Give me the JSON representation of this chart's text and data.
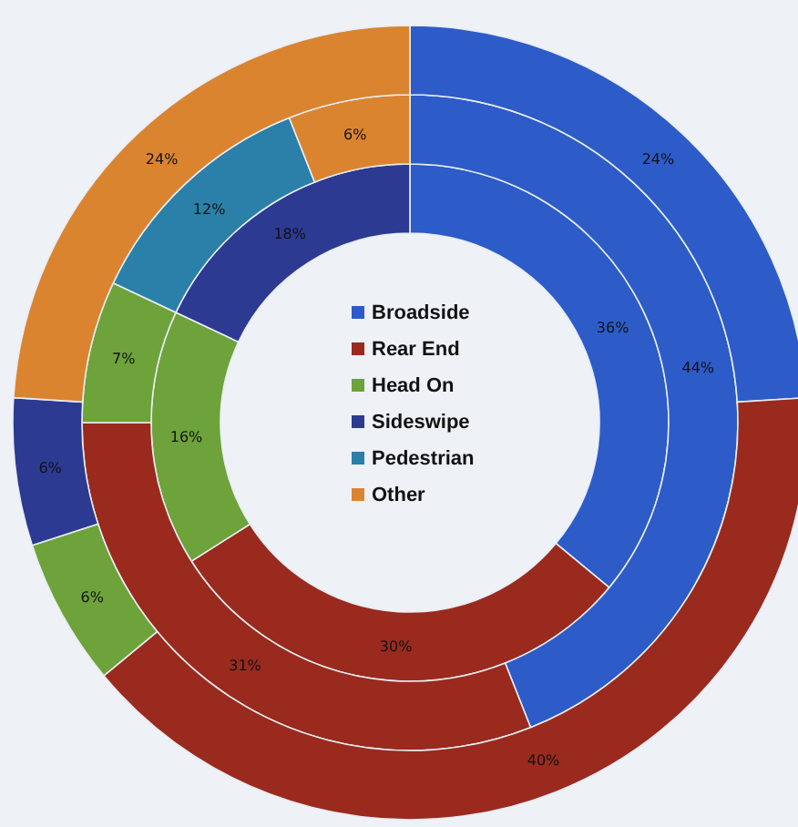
{
  "chart_data": {
    "type": "donut",
    "categories": [
      "Broadside",
      "Rear End",
      "Head On",
      "Sideswipe",
      "Pedestrian",
      "Other"
    ],
    "colors": [
      "#2d5cc8",
      "#9a2a1e",
      "#6da33a",
      "#2c3a92",
      "#2a80a8",
      "#db8430"
    ],
    "series": [
      {
        "values": [
          36,
          30,
          16,
          18,
          null,
          null
        ],
        "value_labels": [
          "36%",
          "30%",
          "16%",
          "18%",
          null,
          null
        ]
      },
      {
        "values": [
          44,
          31,
          7,
          null,
          12,
          6
        ],
        "value_labels": [
          "44%",
          "31%",
          "7%",
          null,
          "12%",
          "6%"
        ]
      },
      {
        "values": [
          24,
          40,
          6,
          6,
          null,
          24
        ],
        "value_labels": [
          "24%",
          "40%",
          "6%",
          "6%",
          null,
          "24%"
        ]
      }
    ],
    "legend": "center"
  }
}
